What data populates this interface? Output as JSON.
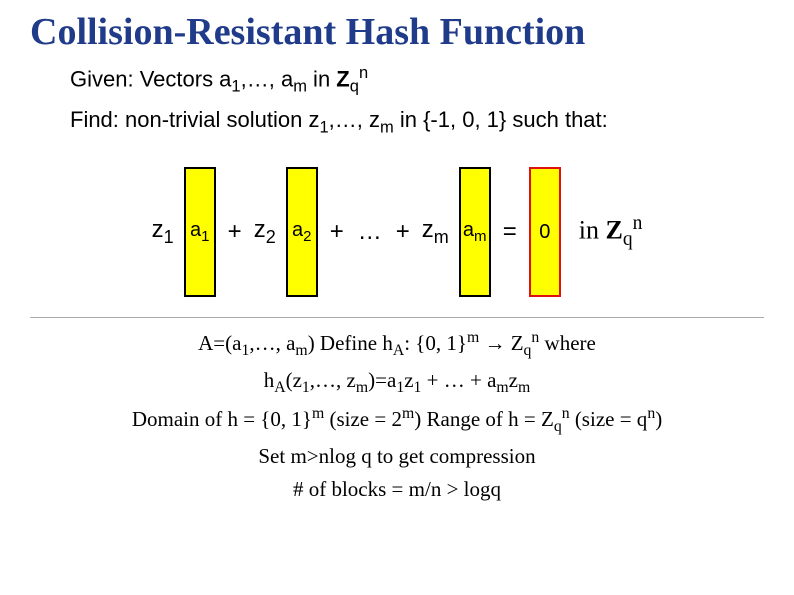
{
  "title": "Collision-Resistant Hash Function",
  "given_prefix": "Given: Vectors a",
  "given_sub1": "1",
  "given_mid": ",…, a",
  "given_sub2": "m",
  "given_in": " in ",
  "given_Z": "Z",
  "given_q": "q",
  "given_n": "n",
  "find_prefix": "Find: non-trivial solution z",
  "find_sub1": "1",
  "find_mid": ",…, z",
  "find_sub2": "m",
  "find_in": " in {-1, 0, 1} such that:",
  "eq": {
    "z1": "z",
    "z1_sub": "1",
    "a1": "a",
    "a1_sub": "1",
    "plus1": "+",
    "z2": "z",
    "z2_sub": "2",
    "a2": "a",
    "a2_sub": "2",
    "plus2": "+",
    "dots": "…",
    "plus3": "+",
    "zm": "z",
    "zm_sub": "m",
    "am": "a",
    "am_sub": "m",
    "eq": "=",
    "zero": "0",
    "in": "in ",
    "Z": "Z",
    "q": "q",
    "n": "n"
  },
  "defs": {
    "l1a": "A=(a",
    "l1a_sub": "1",
    "l1b": ",…, a",
    "l1b_sub": "m",
    "l1c": ")   Define h",
    "l1c_sub": "A",
    "l1d": ": {0, 1}",
    "l1d_sup": "m",
    "l1e": " → Z",
    "l1e_sub": "q",
    "l1e_sup": "n",
    "l1f": " where",
    "l2a": "h",
    "l2a_sub": "A",
    "l2b": "(z",
    "l2b_sub": "1",
    "l2c": ",…, z",
    "l2c_sub": "m",
    "l2d": ")=a",
    "l2d_sub": "1",
    "l2e": "z",
    "l2e_sub": "1",
    "l2f": " + … + a",
    "l2f_sub": "m",
    "l2g": "z",
    "l2g_sub": "m",
    "l3a": "Domain of h = {0, 1}",
    "l3a_sup": "m",
    "l3b": "  (size = 2",
    "l3b_sup": "m",
    "l3c": ")  Range of h = Z",
    "l3c_sub": "q",
    "l3c_sup": "n",
    "l3d": " (size = q",
    "l3d_sup": "n",
    "l3e": ")",
    "l4": "Set m>nlog q to get compression",
    "l5": "# of blocks = m/n > logq"
  },
  "colors": {
    "title": "#1f3b8a",
    "vec_bg": "#ffff00",
    "vec_border": "#000000",
    "zero_border": "#e01010",
    "hr": "#aaaaaa",
    "bg": "#ffffff"
  }
}
